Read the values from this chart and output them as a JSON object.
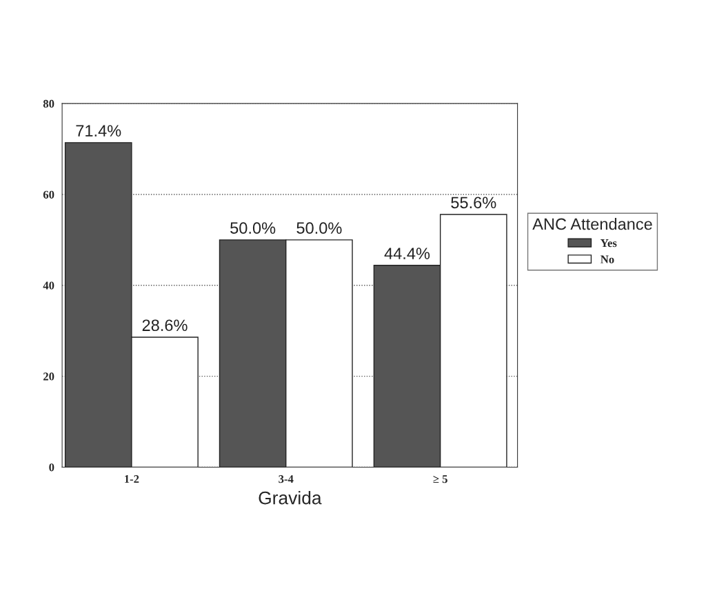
{
  "chart_data": {
    "type": "bar",
    "xlabel": "Gravida",
    "legend_title": "ANC Attendance",
    "categories": [
      "1-2",
      "3-4",
      "≥ 5"
    ],
    "series": [
      {
        "name": "Yes",
        "color": "#555555",
        "values": [
          71.4,
          50.0,
          44.4
        ],
        "value_labels": [
          "71.4%",
          "50.0%",
          "44.4%"
        ]
      },
      {
        "name": "No",
        "color": "#ffffff",
        "values": [
          28.6,
          50.0,
          55.6
        ],
        "value_labels": [
          "28.6%",
          "50.0%",
          "55.6%"
        ]
      }
    ],
    "ylim": [
      0,
      80
    ],
    "yticks": [
      0,
      20,
      40,
      60,
      80
    ],
    "grid": "y",
    "legend": "right"
  }
}
